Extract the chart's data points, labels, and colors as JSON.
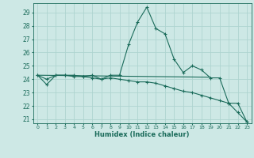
{
  "xlabel": "Humidex (Indice chaleur)",
  "bg_color": "#cde8e5",
  "grid_color": "#aed4d0",
  "line_color": "#1a6b5a",
  "xlim": [
    -0.5,
    23.5
  ],
  "ylim": [
    20.7,
    29.7
  ],
  "yticks": [
    21,
    22,
    23,
    24,
    25,
    26,
    27,
    28,
    29
  ],
  "xticks": [
    0,
    1,
    2,
    3,
    4,
    5,
    6,
    7,
    8,
    9,
    10,
    11,
    12,
    13,
    14,
    15,
    16,
    17,
    18,
    19,
    20,
    21,
    22,
    23
  ],
  "line1_x": [
    0,
    1,
    2,
    3,
    4,
    5,
    6,
    7,
    8,
    9,
    10,
    11,
    12,
    13,
    14,
    15,
    16,
    17,
    18,
    19,
    20,
    21,
    22,
    23
  ],
  "line1_y": [
    24.3,
    23.6,
    24.3,
    24.3,
    24.2,
    24.2,
    24.3,
    24.0,
    24.3,
    24.3,
    26.6,
    28.3,
    29.4,
    27.8,
    27.4,
    25.5,
    24.5,
    25.0,
    24.7,
    24.1,
    24.1,
    22.2,
    22.2,
    20.8
  ],
  "line2_x": [
    0,
    1,
    2,
    3,
    4,
    5,
    6,
    7,
    8,
    9,
    10,
    11,
    12,
    13,
    14,
    15,
    16,
    17,
    18,
    19,
    20,
    21,
    22,
    23
  ],
  "line2_y": [
    24.3,
    24.0,
    24.3,
    24.3,
    24.3,
    24.2,
    24.1,
    24.0,
    24.1,
    24.0,
    23.9,
    23.8,
    23.8,
    23.7,
    23.5,
    23.3,
    23.1,
    23.0,
    22.8,
    22.6,
    22.4,
    22.2,
    21.5,
    20.8
  ],
  "line3_x": [
    0,
    19
  ],
  "line3_y": [
    24.3,
    24.15
  ]
}
